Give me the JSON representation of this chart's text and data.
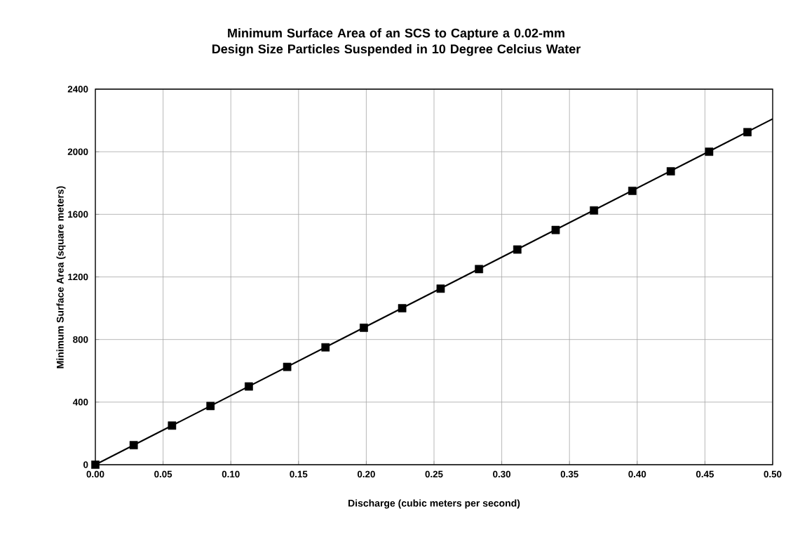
{
  "chart_data": {
    "type": "scatter",
    "title": "Minimum Surface Area of an SCS to Capture a 0.02-mm Design Size Particles Suspended in 10 Degree Celcius Water",
    "xlabel": "Discharge (cubic meters per second)",
    "ylabel": "Minimum Surface Area (square meters)",
    "series": [
      {
        "marker": "square",
        "color": "#000000",
        "x": [
          0,
          0.0283,
          0.0566,
          0.085,
          0.1133,
          0.1416,
          0.1699,
          0.1982,
          0.2265,
          0.2549,
          0.2832,
          0.3115,
          0.3398,
          0.3681,
          0.3964,
          0.4248,
          0.4531,
          0.4814
        ],
        "values": [
          0,
          125,
          250,
          375,
          500,
          625,
          750,
          875,
          1000,
          1125,
          1250,
          1375,
          1500,
          1625,
          1750,
          1875,
          2000,
          2125
        ]
      },
      {
        "type": "line",
        "marker": "none",
        "color": "#000000",
        "x": [
          0,
          0.5
        ],
        "values": [
          0,
          2210
        ]
      }
    ],
    "xlim": [
      0,
      0.5
    ],
    "xticks": [
      {
        "value": 0,
        "label": "0.00"
      },
      {
        "value": 0.05,
        "label": "0.05"
      },
      {
        "value": 0.1,
        "label": "0.10"
      },
      {
        "value": 0.15,
        "label": "0.15"
      },
      {
        "value": 0.2,
        "label": "0.20"
      },
      {
        "value": 0.25,
        "label": "0.25"
      },
      {
        "value": 0.3,
        "label": "0.30"
      },
      {
        "value": 0.35,
        "label": "0.35"
      },
      {
        "value": 0.4,
        "label": "0.40"
      },
      {
        "value": 0.45,
        "label": "0.45"
      },
      {
        "value": 0.5,
        "label": "0.50"
      }
    ],
    "ylim": [
      0,
      2400
    ],
    "yticks": [
      0,
      400,
      800,
      1200,
      1600,
      2000,
      2400
    ],
    "grid": true,
    "line_style": "solid"
  }
}
